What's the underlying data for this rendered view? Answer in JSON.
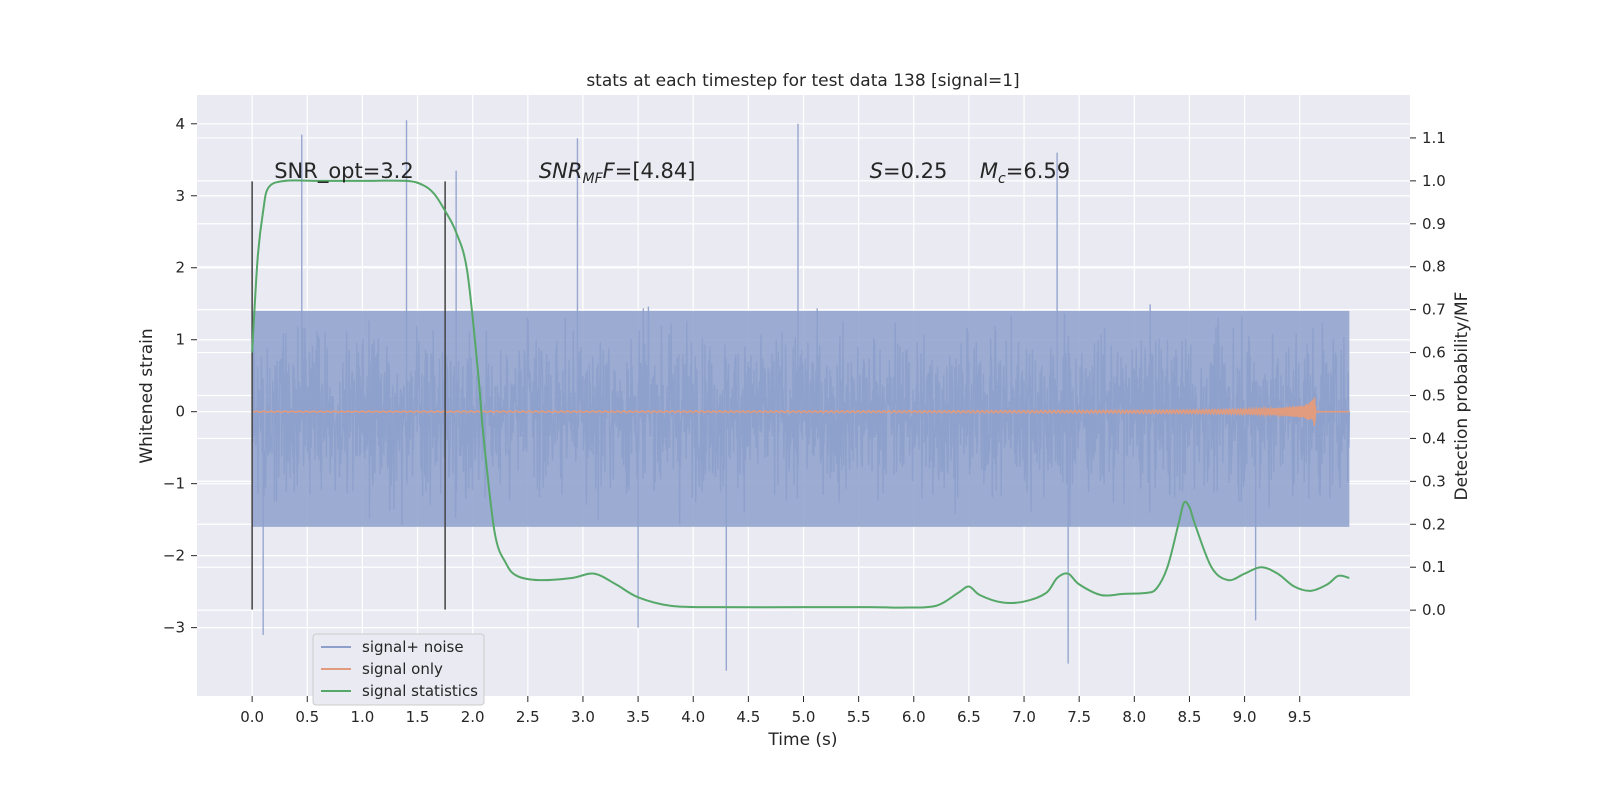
{
  "chart_data": {
    "type": "line",
    "title": "stats at each timestep for test data 138 [signal=1]",
    "xlabel": "Time (s)",
    "ylabel_left": "Whitened strain",
    "ylabel_right": "Detection probability/MF",
    "xlim": [
      -0.5,
      10.5
    ],
    "ylim_left": [
      -3.95,
      4.4
    ],
    "ylim_right": [
      -0.2,
      1.2
    ],
    "x_ticks": [
      0.0,
      0.5,
      1.0,
      1.5,
      2.0,
      2.5,
      3.0,
      3.5,
      4.0,
      4.5,
      5.0,
      5.5,
      6.0,
      6.5,
      7.0,
      7.5,
      8.0,
      8.5,
      9.0,
      9.5
    ],
    "y_ticks_left": [
      -3,
      -2,
      -1,
      0,
      1,
      2,
      3,
      4
    ],
    "y_ticks_right": [
      0.0,
      0.1,
      0.2,
      0.3,
      0.4,
      0.5,
      0.6,
      0.7,
      0.8,
      0.9,
      1.0,
      1.1
    ],
    "grid": true,
    "legend_position": "lower-left",
    "colors": {
      "noise": "#8da0cb",
      "signal": "#e19c7f",
      "stats": "#55a868",
      "background": "#eaeaf2",
      "grid": "#ffffff",
      "vline": "#444444"
    },
    "annotations": [
      {
        "x": 0.2,
        "y": 3.25,
        "parts": [
          {
            "text": "SNR_opt=3.2"
          }
        ]
      },
      {
        "x": 2.6,
        "y": 3.25,
        "parts": [
          {
            "text": "SNR",
            "italic": true
          },
          {
            "text": "MF",
            "italic": true,
            "sub": true
          },
          {
            "text": "F",
            "italic": true
          },
          {
            "text": "=[4.84]"
          }
        ]
      },
      {
        "x": 5.6,
        "y": 3.25,
        "parts": [
          {
            "text": "S",
            "italic": true
          },
          {
            "text": "=0.25"
          }
        ]
      },
      {
        "x": 6.6,
        "y": 3.25,
        "parts": [
          {
            "text": "M",
            "italic": true
          },
          {
            "text": "c",
            "italic": true,
            "sub": true
          },
          {
            "text": "=6.59"
          }
        ]
      }
    ],
    "vertical_markers": [
      {
        "x": 0.0,
        "y_range": [
          -2.75,
          3.2
        ]
      },
      {
        "x": 1.75,
        "y_range": [
          -2.75,
          3.2
        ]
      }
    ],
    "series": [
      {
        "name": "signal+ noise",
        "axis": "left",
        "kind": "noise",
        "x_range": [
          0.0,
          9.95
        ],
        "typical_range": [
          -1.6,
          1.4
        ],
        "max": 4.05,
        "min": -3.6,
        "spikes": [
          {
            "x": 0.45,
            "y": 3.85
          },
          {
            "x": 1.4,
            "y": 4.05
          },
          {
            "x": 1.85,
            "y": 3.35
          },
          {
            "x": 2.95,
            "y": 3.8
          },
          {
            "x": 4.95,
            "y": 4.0
          },
          {
            "x": 7.3,
            "y": 3.6
          },
          {
            "x": 0.1,
            "y": -3.1
          },
          {
            "x": 4.3,
            "y": -3.6
          },
          {
            "x": 7.4,
            "y": -3.5
          },
          {
            "x": 3.5,
            "y": -3.0
          },
          {
            "x": 9.1,
            "y": -2.9
          }
        ]
      },
      {
        "name": "signal only",
        "axis": "left",
        "kind": "chirp",
        "x_range": [
          0.0,
          9.95
        ],
        "merger_time": 9.65,
        "peak_amplitude": 0.3
      },
      {
        "name": "signal statistics",
        "axis": "right",
        "kind": "line",
        "x": [
          0.0,
          0.05,
          0.1,
          0.15,
          0.3,
          0.6,
          1.0,
          1.4,
          1.55,
          1.65,
          1.75,
          1.85,
          1.95,
          2.05,
          2.1,
          2.2,
          2.3,
          2.4,
          2.6,
          2.9,
          3.1,
          3.3,
          3.5,
          3.8,
          4.2,
          5.0,
          5.6,
          5.9,
          6.2,
          6.4,
          6.5,
          6.6,
          6.8,
          7.0,
          7.2,
          7.3,
          7.4,
          7.5,
          7.7,
          7.9,
          8.1,
          8.2,
          8.3,
          8.4,
          8.45,
          8.5,
          8.55,
          8.7,
          8.85,
          9.0,
          9.15,
          9.3,
          9.45,
          9.6,
          9.75,
          9.85,
          9.95
        ],
        "values": [
          0.6,
          0.82,
          0.93,
          0.985,
          1.0,
          1.0,
          1.0,
          1.0,
          0.99,
          0.97,
          0.93,
          0.88,
          0.79,
          0.55,
          0.4,
          0.18,
          0.11,
          0.08,
          0.07,
          0.075,
          0.085,
          0.06,
          0.03,
          0.01,
          0.007,
          0.007,
          0.007,
          0.006,
          0.01,
          0.04,
          0.055,
          0.035,
          0.018,
          0.02,
          0.04,
          0.075,
          0.085,
          0.06,
          0.035,
          0.038,
          0.04,
          0.05,
          0.1,
          0.2,
          0.25,
          0.24,
          0.2,
          0.1,
          0.07,
          0.085,
          0.1,
          0.085,
          0.055,
          0.045,
          0.06,
          0.08,
          0.075
        ]
      }
    ]
  }
}
